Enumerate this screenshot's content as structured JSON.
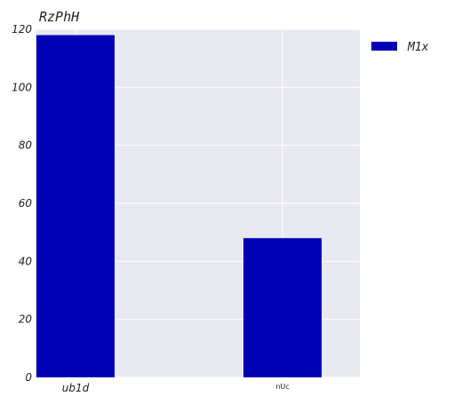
{
  "chart_data": {
    "type": "bar",
    "title": "RzPhH",
    "categories": [
      "ub1d",
      "nUc"
    ],
    "series": [
      {
        "name": "M1x",
        "values": [
          118,
          48
        ],
        "color": "#0000b4"
      }
    ],
    "xlabel": "",
    "ylabel": "",
    "ylim": [
      0,
      120
    ],
    "yticks": [
      0,
      20,
      40,
      60,
      80,
      100,
      120
    ],
    "grid": true,
    "legend": "top-right, outside plot",
    "background_color": "#e8e8f0",
    "grid_color": "#ffffff"
  }
}
